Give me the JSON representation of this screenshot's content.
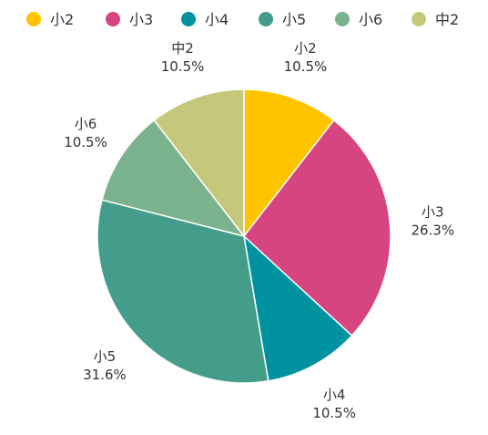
{
  "chart_data": {
    "type": "pie",
    "legend_position": "top",
    "slices": [
      {
        "label": "小2",
        "value": 10.5,
        "value_label": "10.5%",
        "color": "#FFC400"
      },
      {
        "label": "小3",
        "value": 26.3,
        "value_label": "26.3%",
        "color": "#D6457F"
      },
      {
        "label": "小4",
        "value": 10.5,
        "value_label": "10.5%",
        "color": "#00929F"
      },
      {
        "label": "小5",
        "value": 31.6,
        "value_label": "31.6%",
        "color": "#439D8A"
      },
      {
        "label": "小6",
        "value": 10.5,
        "value_label": "10.5%",
        "color": "#7CB38F"
      },
      {
        "label": "中2",
        "value": 10.5,
        "value_label": "10.5%",
        "color": "#C5C87A"
      }
    ]
  }
}
